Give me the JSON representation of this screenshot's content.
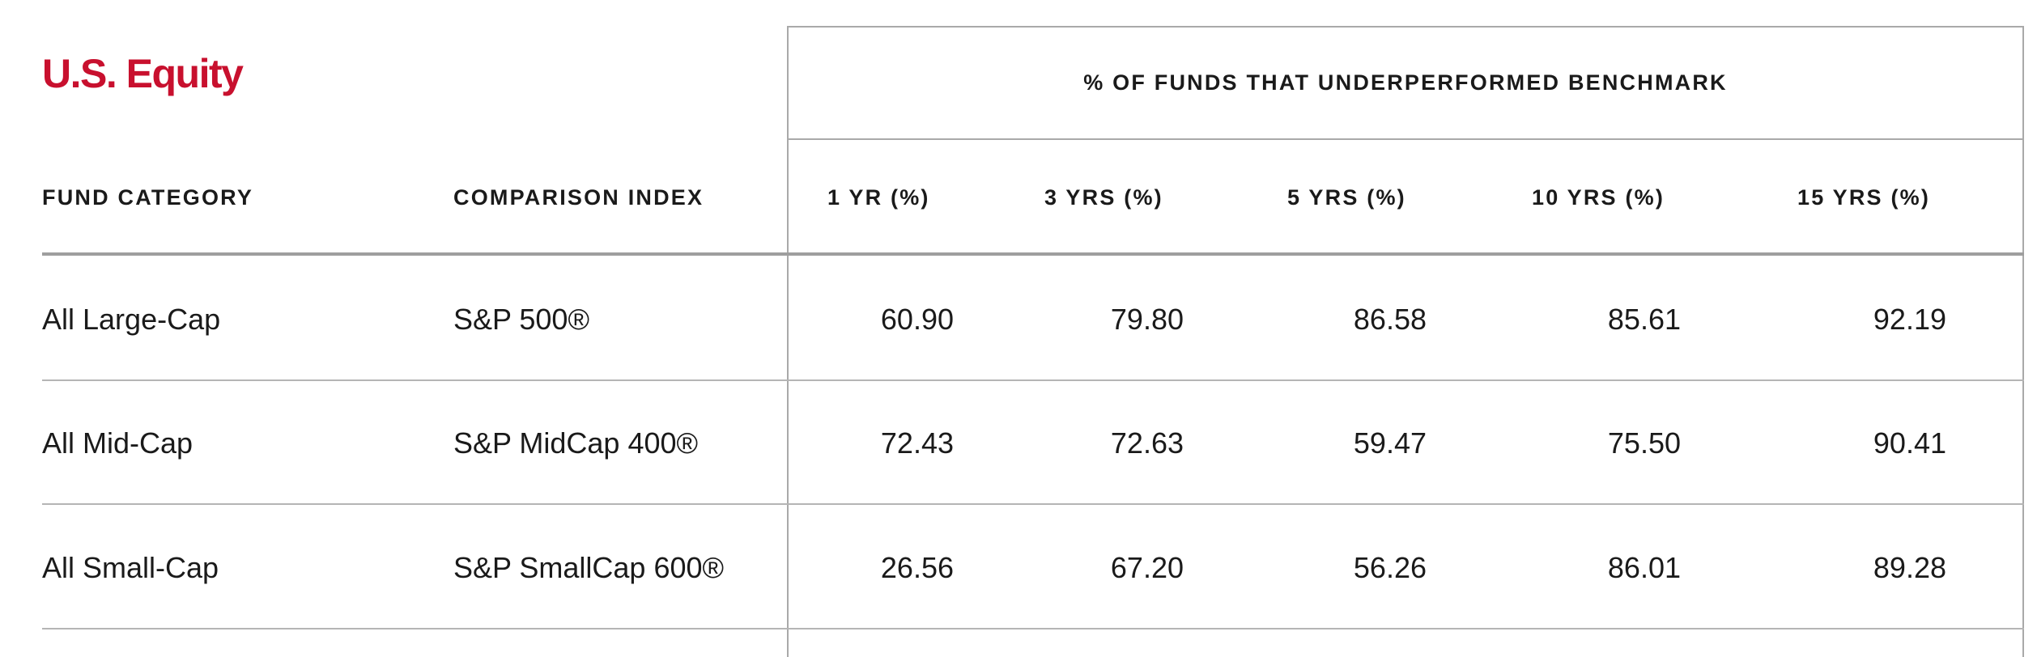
{
  "section": {
    "title": "U.S. Equity"
  },
  "table": {
    "group_caption": "% OF FUNDS THAT UNDERPERFORMED BENCHMARK",
    "columns": {
      "category": "FUND CATEGORY",
      "index": "COMPARISON INDEX",
      "yr1": "1 YR (%)",
      "yr3": "3 YRS (%)",
      "yr5": "5 YRS (%)",
      "yr10": "10 YRS (%)",
      "yr15": "15 YRS (%)"
    },
    "rows": [
      {
        "category": "All Large-Cap",
        "index": "S&P 500®",
        "yr1": "60.90",
        "yr3": "79.80",
        "yr5": "86.58",
        "yr10": "85.61",
        "yr15": "92.19"
      },
      {
        "category": "All Mid-Cap",
        "index": "S&P MidCap 400®",
        "yr1": "72.43",
        "yr3": "72.63",
        "yr5": "59.47",
        "yr10": "75.50",
        "yr15": "90.41"
      },
      {
        "category": "All Small-Cap",
        "index": "S&P SmallCap 600®",
        "yr1": "26.56",
        "yr3": "67.20",
        "yr5": "56.26",
        "yr10": "86.01",
        "yr15": "89.28"
      }
    ]
  },
  "colors": {
    "title_red": "#c8102e",
    "text": "#1a1a1a",
    "rule_gray": "#a9a9a9"
  }
}
